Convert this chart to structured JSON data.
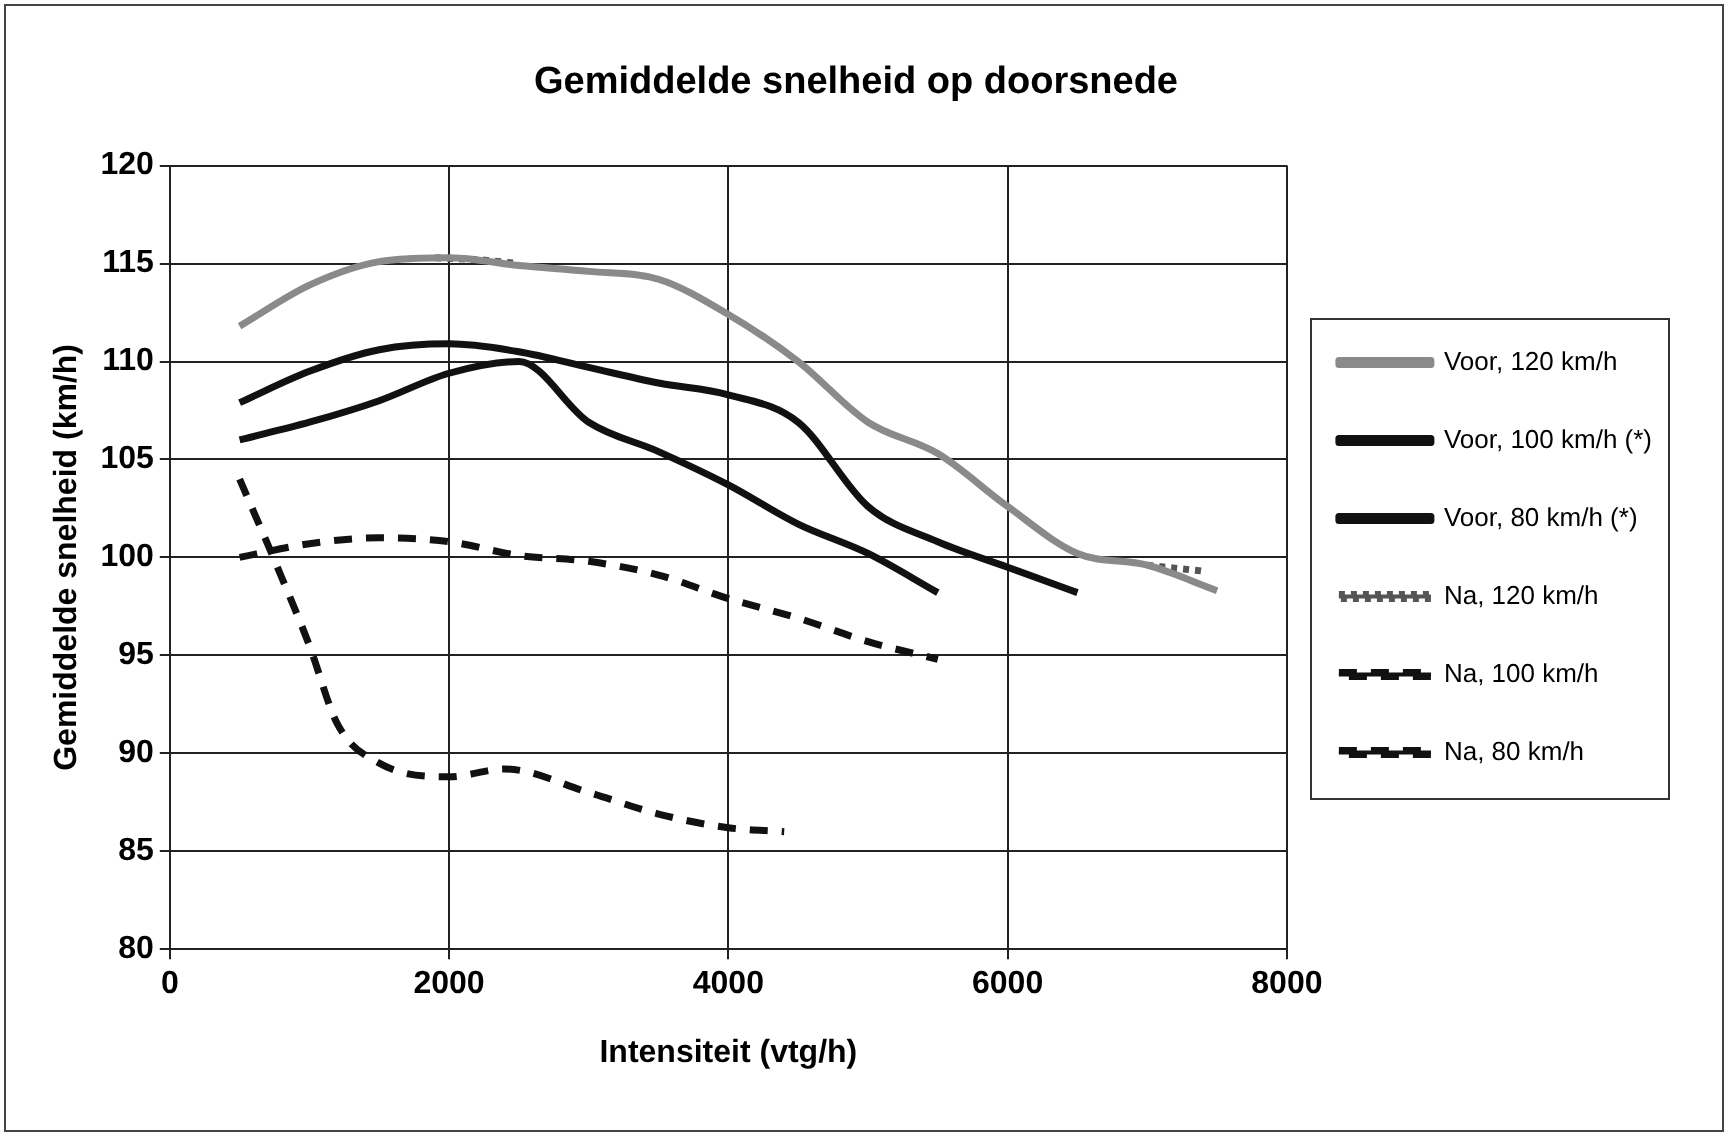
{
  "chart_data": {
    "type": "line",
    "title": "Gemiddelde snelheid op doorsnede",
    "xlabel": "Intensiteit (vtg/h)",
    "ylabel": "Gemiddelde snelheid (km/h)",
    "xlim": [
      0,
      8000
    ],
    "xticks": [
      0,
      2000,
      4000,
      6000,
      8000
    ],
    "ylim": [
      80,
      120
    ],
    "yticks": [
      80,
      85,
      90,
      95,
      100,
      105,
      110,
      115,
      120
    ],
    "grid": true,
    "legend": "right",
    "marker": "none",
    "series": [
      {
        "name": "Voor, 120 km/h",
        "color": "#8a8a8a",
        "line_style": "solid",
        "x": [
          500,
          1000,
          1500,
          2000,
          2500,
          3000,
          3500,
          4000,
          4500,
          5000,
          5500,
          6000,
          6500,
          7000,
          7500
        ],
        "values": [
          111.8,
          113.9,
          115.1,
          115.3,
          114.9,
          114.6,
          114.2,
          112.4,
          110,
          106.9,
          105.3,
          102.6,
          100.2,
          99.6,
          98.3
        ]
      },
      {
        "name": "Voor, 100 km/h (*)",
        "color": "#111111",
        "line_style": "solid",
        "x": [
          500,
          1000,
          1500,
          2000,
          2500,
          3000,
          3500,
          4000,
          4500,
          5000,
          5500,
          6000,
          6500
        ],
        "values": [
          107.9,
          109.5,
          110.6,
          110.9,
          110.5,
          109.7,
          108.9,
          108.3,
          106.9,
          102.6,
          100.8,
          99.5,
          98.2
        ]
      },
      {
        "name": "Voor, 80 km/h (*)",
        "color": "#111111",
        "line_style": "solid",
        "x": [
          500,
          1000,
          1500,
          2000,
          2500,
          3000,
          3500,
          4000,
          4500,
          5000,
          5500
        ],
        "values": [
          106,
          106.9,
          108,
          109.4,
          110,
          106.9,
          105.4,
          103.7,
          101.7,
          100.2,
          98.2
        ]
      },
      {
        "name": "Na, 120 km/h",
        "color": "#555555",
        "line_style": "dotted",
        "x": [
          1900,
          2200,
          2500,
          4700,
          7000,
          7400
        ],
        "values": [
          115.3,
          115.2,
          115,
          null,
          99.6,
          99.3
        ]
      },
      {
        "name": "Na, 100 km/h",
        "color": "#111111",
        "line_style": "dashed",
        "x": [
          500,
          1000,
          1500,
          2000,
          2500,
          3000,
          3500,
          4000,
          4500,
          5000,
          5500
        ],
        "values": [
          100,
          100.7,
          101,
          100.8,
          100.1,
          99.8,
          99.1,
          97.9,
          96.9,
          95.7,
          94.8
        ]
      },
      {
        "name": "Na, 80 km/h",
        "color": "#111111",
        "line_style": "dashed",
        "x": [
          500,
          800,
          1000,
          1200,
          1500,
          2000,
          2400,
          3000,
          3500,
          4000,
          4400
        ],
        "values": [
          104,
          99,
          95.5,
          91.5,
          89.5,
          88.8,
          89.2,
          88,
          86.9,
          86.2,
          86
        ]
      }
    ]
  }
}
